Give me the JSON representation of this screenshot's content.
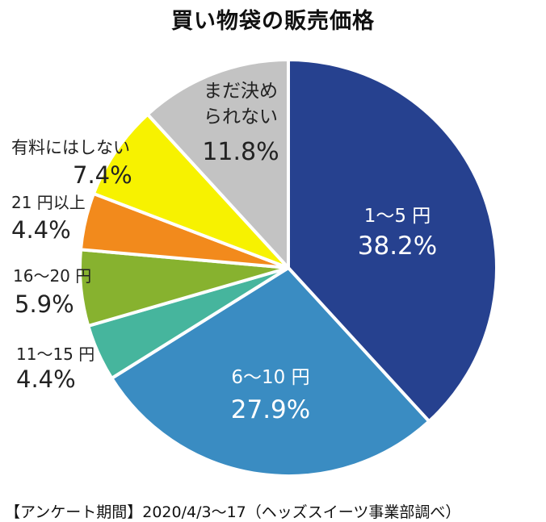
{
  "chart_data": {
    "type": "pie",
    "title": "買い物袋の販売価格",
    "slices": [
      {
        "label": "1〜5 円",
        "value": 38.2,
        "display": "38.2%",
        "color": "#26418f"
      },
      {
        "label": "6〜10 円",
        "value": 27.9,
        "display": "27.9%",
        "color": "#3a8cc2"
      },
      {
        "label": "11〜15 円",
        "value": 4.4,
        "display": "4.4%",
        "color": "#46b59d"
      },
      {
        "label": "16〜20 円",
        "value": 5.9,
        "display": "5.9%",
        "color": "#87b22f"
      },
      {
        "label": "21 円以上",
        "value": 4.4,
        "display": "4.4%",
        "color": "#f28a1c"
      },
      {
        "label": "有料にはしない",
        "value": 7.4,
        "display": "7.4%",
        "color": "#f7f200"
      },
      {
        "label": "まだ決められない",
        "value": 11.8,
        "display": "11.8%",
        "color": "#c3c3c3"
      }
    ],
    "source": "【アンケート期間】2020/4/3〜17（ヘッズスイーツ事業部調べ）"
  }
}
